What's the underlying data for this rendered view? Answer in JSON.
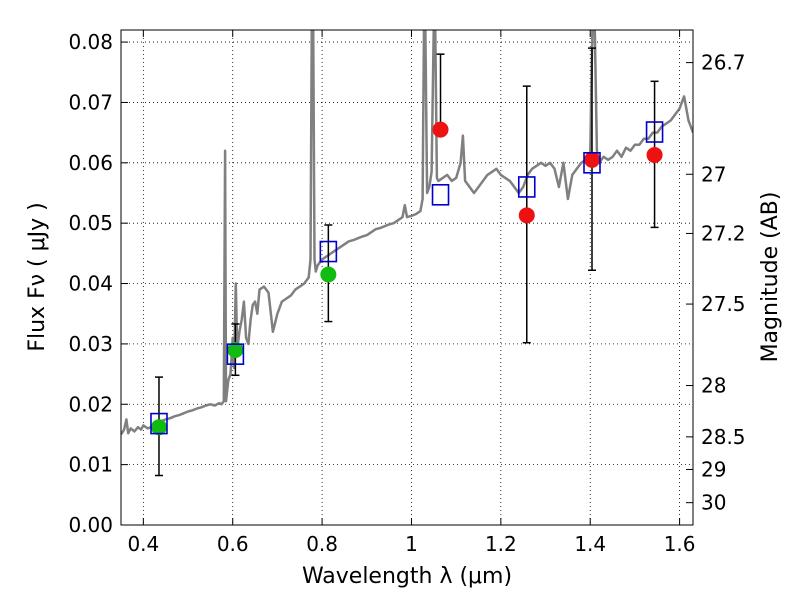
{
  "chart_data": {
    "type": "scatter",
    "xlabel": "Wavelength  λ (μm)",
    "ylabel": "Flux  Fν  ( μJy )",
    "y2label": "Magnitude (AB)",
    "xlim": [
      0.35,
      1.63
    ],
    "ylim": [
      0.0,
      0.082
    ],
    "grid": true,
    "x_ticks": [
      0.4,
      0.6,
      0.8,
      1.0,
      1.2,
      1.4,
      1.6
    ],
    "x_tick_labels": [
      "0.4",
      "0.6",
      "0.8",
      "1",
      "1.2",
      "1.4",
      "1.6"
    ],
    "y_ticks": [
      0.0,
      0.01,
      0.02,
      0.03,
      0.04,
      0.05,
      0.06,
      0.07,
      0.08
    ],
    "y_tick_labels": [
      "0.00",
      "0.01",
      "0.02",
      "0.03",
      "0.04",
      "0.05",
      "0.06",
      "0.07",
      "0.08"
    ],
    "mag_ticks": [
      {
        "label": "26.7",
        "flux": 0.0766
      },
      {
        "label": "27",
        "flux": 0.0581
      },
      {
        "label": "27.2",
        "flux": 0.0483
      },
      {
        "label": "27.5",
        "flux": 0.0366
      },
      {
        "label": "28",
        "flux": 0.0231
      },
      {
        "label": "28.5",
        "flux": 0.0146
      },
      {
        "label": "29",
        "flux": 0.0092
      },
      {
        "label": "30",
        "flux": 0.0037
      }
    ],
    "colors": {
      "spectrum": "#808080",
      "green": "#11bb11",
      "red": "#ee1111",
      "model_box": "#0000cc",
      "errorbar": "#000000",
      "grid": "#000000"
    },
    "spectrum": [
      [
        0.35,
        0.015
      ],
      [
        0.357,
        0.0158
      ],
      [
        0.362,
        0.0175
      ],
      [
        0.366,
        0.0152
      ],
      [
        0.372,
        0.016
      ],
      [
        0.38,
        0.0155
      ],
      [
        0.388,
        0.0162
      ],
      [
        0.395,
        0.0158
      ],
      [
        0.4,
        0.0165
      ],
      [
        0.41,
        0.016
      ],
      [
        0.42,
        0.0163
      ],
      [
        0.43,
        0.0168
      ],
      [
        0.44,
        0.0172
      ],
      [
        0.45,
        0.0175
      ],
      [
        0.46,
        0.0177
      ],
      [
        0.47,
        0.018
      ],
      [
        0.48,
        0.0182
      ],
      [
        0.49,
        0.0185
      ],
      [
        0.5,
        0.0188
      ],
      [
        0.51,
        0.019
      ],
      [
        0.52,
        0.0193
      ],
      [
        0.53,
        0.0195
      ],
      [
        0.54,
        0.0198
      ],
      [
        0.55,
        0.02
      ],
      [
        0.56,
        0.0198
      ],
      [
        0.57,
        0.0202
      ],
      [
        0.575,
        0.02
      ],
      [
        0.58,
        0.0205
      ],
      [
        0.583,
        0.062
      ],
      [
        0.585,
        0.0205
      ],
      [
        0.59,
        0.024
      ],
      [
        0.595,
        0.025
      ],
      [
        0.6,
        0.031
      ],
      [
        0.603,
        0.026
      ],
      [
        0.607,
        0.04
      ],
      [
        0.61,
        0.029
      ],
      [
        0.615,
        0.032
      ],
      [
        0.62,
        0.034
      ],
      [
        0.625,
        0.037
      ],
      [
        0.63,
        0.031
      ],
      [
        0.635,
        0.03
      ],
      [
        0.64,
        0.034
      ],
      [
        0.645,
        0.0365
      ],
      [
        0.65,
        0.037
      ],
      [
        0.655,
        0.035
      ],
      [
        0.66,
        0.039
      ],
      [
        0.67,
        0.0395
      ],
      [
        0.68,
        0.0385
      ],
      [
        0.69,
        0.032
      ],
      [
        0.7,
        0.035
      ],
      [
        0.71,
        0.037
      ],
      [
        0.72,
        0.0375
      ],
      [
        0.73,
        0.038
      ],
      [
        0.74,
        0.039
      ],
      [
        0.75,
        0.0395
      ],
      [
        0.76,
        0.04
      ],
      [
        0.77,
        0.041
      ],
      [
        0.774,
        0.044
      ],
      [
        0.777,
        0.083
      ],
      [
        0.78,
        0.083
      ],
      [
        0.783,
        0.044
      ],
      [
        0.786,
        0.042
      ],
      [
        0.79,
        0.043
      ],
      [
        0.8,
        0.044
      ],
      [
        0.81,
        0.0445
      ],
      [
        0.82,
        0.045
      ],
      [
        0.83,
        0.0455
      ],
      [
        0.84,
        0.046
      ],
      [
        0.85,
        0.0465
      ],
      [
        0.86,
        0.047
      ],
      [
        0.87,
        0.0472
      ],
      [
        0.88,
        0.0475
      ],
      [
        0.89,
        0.0478
      ],
      [
        0.9,
        0.048
      ],
      [
        0.91,
        0.0485
      ],
      [
        0.92,
        0.049
      ],
      [
        0.93,
        0.0492
      ],
      [
        0.94,
        0.0495
      ],
      [
        0.95,
        0.0498
      ],
      [
        0.96,
        0.05
      ],
      [
        0.97,
        0.0505
      ],
      [
        0.98,
        0.051
      ],
      [
        0.985,
        0.053
      ],
      [
        0.99,
        0.051
      ],
      [
        1.0,
        0.0512
      ],
      [
        1.01,
        0.0515
      ],
      [
        1.02,
        0.052
      ],
      [
        1.025,
        0.054
      ],
      [
        1.028,
        0.083
      ],
      [
        1.031,
        0.083
      ],
      [
        1.035,
        0.055
      ],
      [
        1.04,
        0.056
      ],
      [
        1.045,
        0.0585
      ],
      [
        1.05,
        0.083
      ],
      [
        1.053,
        0.083
      ],
      [
        1.057,
        0.0575
      ],
      [
        1.06,
        0.057
      ],
      [
        1.07,
        0.0575
      ],
      [
        1.08,
        0.058
      ],
      [
        1.09,
        0.057
      ],
      [
        1.1,
        0.0575
      ],
      [
        1.11,
        0.06
      ],
      [
        1.115,
        0.0645
      ],
      [
        1.12,
        0.057
      ],
      [
        1.13,
        0.056
      ],
      [
        1.14,
        0.055
      ],
      [
        1.15,
        0.056
      ],
      [
        1.16,
        0.057
      ],
      [
        1.17,
        0.058
      ],
      [
        1.18,
        0.0585
      ],
      [
        1.19,
        0.059
      ],
      [
        1.2,
        0.058
      ],
      [
        1.21,
        0.0575
      ],
      [
        1.22,
        0.057
      ],
      [
        1.23,
        0.056
      ],
      [
        1.24,
        0.055
      ],
      [
        1.25,
        0.056
      ],
      [
        1.26,
        0.058
      ],
      [
        1.27,
        0.059
      ],
      [
        1.28,
        0.0595
      ],
      [
        1.29,
        0.06
      ],
      [
        1.3,
        0.0595
      ],
      [
        1.31,
        0.06
      ],
      [
        1.32,
        0.059
      ],
      [
        1.33,
        0.056
      ],
      [
        1.34,
        0.06
      ],
      [
        1.35,
        0.054
      ],
      [
        1.36,
        0.058
      ],
      [
        1.37,
        0.059
      ],
      [
        1.38,
        0.06
      ],
      [
        1.39,
        0.0605
      ],
      [
        1.4,
        0.061
      ],
      [
        1.405,
        0.083
      ],
      [
        1.41,
        0.083
      ],
      [
        1.415,
        0.062
      ],
      [
        1.42,
        0.06
      ],
      [
        1.43,
        0.061
      ],
      [
        1.44,
        0.0605
      ],
      [
        1.45,
        0.061
      ],
      [
        1.46,
        0.062
      ],
      [
        1.47,
        0.061
      ],
      [
        1.48,
        0.0625
      ],
      [
        1.49,
        0.062
      ],
      [
        1.5,
        0.063
      ],
      [
        1.51,
        0.063
      ],
      [
        1.52,
        0.064
      ],
      [
        1.53,
        0.064
      ],
      [
        1.54,
        0.065
      ],
      [
        1.55,
        0.065
      ],
      [
        1.56,
        0.066
      ],
      [
        1.57,
        0.0665
      ],
      [
        1.58,
        0.067
      ],
      [
        1.59,
        0.068
      ],
      [
        1.6,
        0.069
      ],
      [
        1.605,
        0.07
      ],
      [
        1.61,
        0.071
      ],
      [
        1.615,
        0.069
      ],
      [
        1.62,
        0.067
      ],
      [
        1.625,
        0.066
      ],
      [
        1.63,
        0.065
      ]
    ],
    "observations": [
      {
        "x": 0.435,
        "y": 0.0162,
        "err_low": 0.0082,
        "err_high": 0.0245,
        "color": "green"
      },
      {
        "x": 0.606,
        "y": 0.029,
        "err_low": 0.0248,
        "err_high": 0.0333,
        "color": "green"
      },
      {
        "x": 0.814,
        "y": 0.0415,
        "err_low": 0.0337,
        "err_high": 0.0497,
        "color": "green"
      },
      {
        "x": 1.065,
        "y": 0.0655,
        "err_low": null,
        "err_high": 0.078,
        "color": "red"
      },
      {
        "x": 1.258,
        "y": 0.0513,
        "err_low": 0.0302,
        "err_high": 0.0727,
        "color": "red"
      },
      {
        "x": 1.404,
        "y": 0.0605,
        "err_low": 0.0422,
        "err_high": 0.079,
        "color": "red"
      },
      {
        "x": 1.544,
        "y": 0.0613,
        "err_low": 0.0493,
        "err_high": 0.0735,
        "color": "red"
      }
    ],
    "model_points": [
      {
        "x": 0.435,
        "y": 0.0168
      },
      {
        "x": 0.606,
        "y": 0.0283
      },
      {
        "x": 0.814,
        "y": 0.0453
      },
      {
        "x": 1.065,
        "y": 0.0547
      },
      {
        "x": 1.258,
        "y": 0.056
      },
      {
        "x": 1.404,
        "y": 0.06
      },
      {
        "x": 1.544,
        "y": 0.0651
      }
    ]
  }
}
